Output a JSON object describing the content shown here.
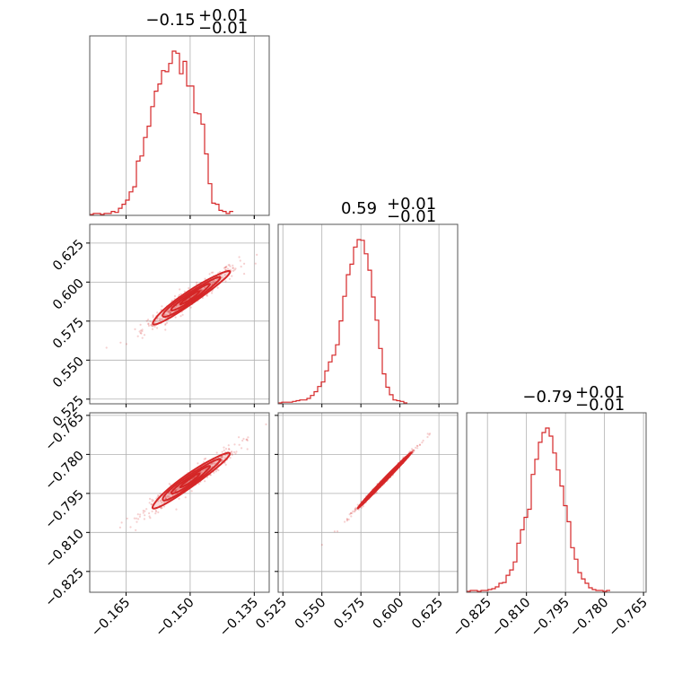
{
  "chart_data": {
    "type": "corner",
    "color": "#d62728",
    "grid": true,
    "parameters": [
      {
        "median": -0.15,
        "plus": 0.01,
        "minus": 0.01,
        "title": "−0.15",
        "plus_label": "+0.01",
        "minus_label": "−0.01",
        "range": [
          -0.1735,
          -0.1315
        ],
        "ticks": [
          -0.165,
          -0.15,
          -0.135
        ],
        "tick_labels": [
          "−0.165",
          "−0.150",
          "−0.135"
        ]
      },
      {
        "median": 0.59,
        "plus": 0.01,
        "minus": 0.01,
        "title": "0.59",
        "plus_label": "+0.01",
        "minus_label": "−0.01",
        "range": [
          0.522,
          0.637
        ],
        "ticks": [
          0.525,
          0.55,
          0.575,
          0.6,
          0.625
        ],
        "tick_labels": [
          "0.525",
          "0.550",
          "0.575",
          "0.600",
          "0.625"
        ]
      },
      {
        "median": -0.79,
        "plus": 0.01,
        "minus": 0.01,
        "title": "−0.79",
        "plus_label": "+0.01",
        "minus_label": "−0.01",
        "range": [
          -0.833,
          -0.764
        ],
        "ticks": [
          -0.825,
          -0.81,
          -0.795,
          -0.78,
          -0.765
        ],
        "tick_labels": [
          "−0.825",
          "−0.810",
          "−0.795",
          "−0.780",
          "−0.765"
        ]
      }
    ],
    "histograms": [
      {
        "bin_edges_start": -0.1735,
        "bin_width": 0.00084,
        "counts": [
          0,
          1,
          1,
          0,
          1,
          1,
          3,
          2,
          6,
          10,
          14,
          22,
          27,
          52,
          57,
          75,
          86,
          105,
          120,
          127,
          140,
          139,
          147,
          159,
          157,
          137,
          149,
          125,
          125,
          99,
          98,
          88,
          59,
          30,
          11,
          10,
          4,
          3,
          1,
          3
        ]
      },
      {
        "bin_edges_start": 0.522,
        "bin_width": 0.0023,
        "counts": [
          0,
          1,
          1,
          1,
          2,
          3,
          4,
          4,
          6,
          10,
          15,
          22,
          28,
          43,
          55,
          64,
          78,
          110,
          143,
          172,
          186,
          209,
          219,
          218,
          200,
          178,
          142,
          111,
          73,
          39,
          21,
          11,
          4,
          3,
          2,
          0
        ]
      },
      {
        "bin_edges_start": -0.833,
        "bin_width": 0.00138,
        "counts": [
          0,
          1,
          1,
          0,
          1,
          1,
          2,
          3,
          5,
          9,
          10,
          18,
          24,
          33,
          54,
          69,
          83,
          92,
          131,
          148,
          167,
          178,
          183,
          174,
          155,
          136,
          118,
          96,
          78,
          49,
          36,
          21,
          14,
          9,
          4,
          2,
          1,
          1,
          0,
          1
        ]
      }
    ],
    "pairs": [
      {
        "x": 0,
        "y": 1,
        "correlation": 0.96
      },
      {
        "x": 0,
        "y": 2,
        "correlation": 0.96
      },
      {
        "x": 1,
        "y": 2,
        "correlation": 0.997
      }
    ],
    "contour_levels_sigma": [
      0.5,
      1.0,
      1.5,
      2.0
    ],
    "std": [
      0.0045,
      0.0085,
      0.0053
    ]
  }
}
